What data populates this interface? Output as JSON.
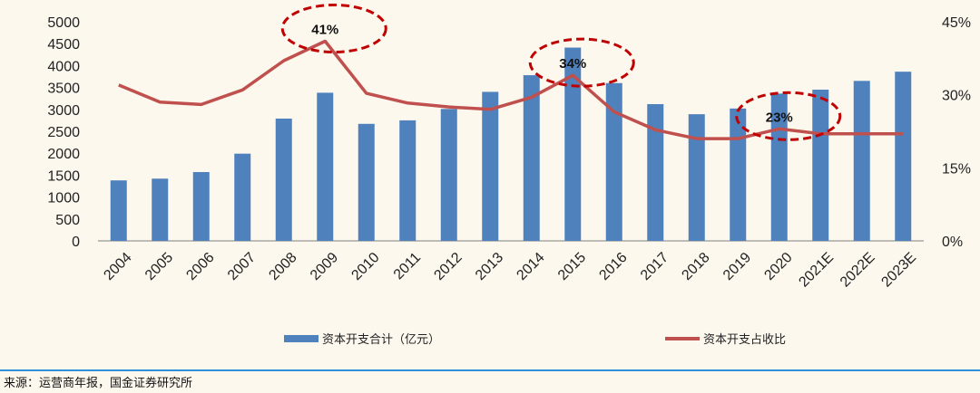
{
  "chart_data": {
    "type": "bar",
    "categories": [
      "2004",
      "2005",
      "2006",
      "2007",
      "2008",
      "2009",
      "2010",
      "2011",
      "2012",
      "2013",
      "2014",
      "2015",
      "2016",
      "2017",
      "2018",
      "2019",
      "2020",
      "2021E",
      "2022E",
      "2023E"
    ],
    "series": [
      {
        "name": "资本开支合计（亿元）",
        "type": "bar",
        "axis": "left",
        "color": "#4f81bd",
        "values": [
          1380,
          1420,
          1570,
          1990,
          2790,
          3380,
          2670,
          2750,
          3010,
          3400,
          3780,
          4410,
          3600,
          3120,
          2890,
          3020,
          3360,
          3450,
          3650,
          3860
        ]
      },
      {
        "name": "资本开支占收比",
        "type": "line",
        "axis": "right",
        "color": "#c0504d",
        "values": [
          32,
          28.5,
          28,
          31,
          37,
          41,
          30.3,
          28.3,
          27.5,
          27,
          29.5,
          34,
          26.5,
          22.8,
          21,
          21,
          23,
          22,
          22,
          22
        ]
      }
    ],
    "y_left": {
      "min": 0,
      "max": 5000,
      "ticks": [
        0,
        500,
        1000,
        1500,
        2000,
        2500,
        3000,
        3500,
        4000,
        4500,
        5000
      ]
    },
    "y_right": {
      "min": 0,
      "max": 45,
      "ticks": [
        "0%",
        "15%",
        "30%",
        "45%"
      ]
    },
    "annotations": [
      {
        "text": "41%",
        "category": "2009",
        "value": 41
      },
      {
        "text": "34%",
        "category": "2015",
        "value": 34
      },
      {
        "text": "23%",
        "category": "2020",
        "value": 23
      }
    ],
    "annotation_color": "#c00000",
    "legend_position": "bottom",
    "grid": false,
    "source": "来源：运营商年报，国金证券研究所"
  }
}
